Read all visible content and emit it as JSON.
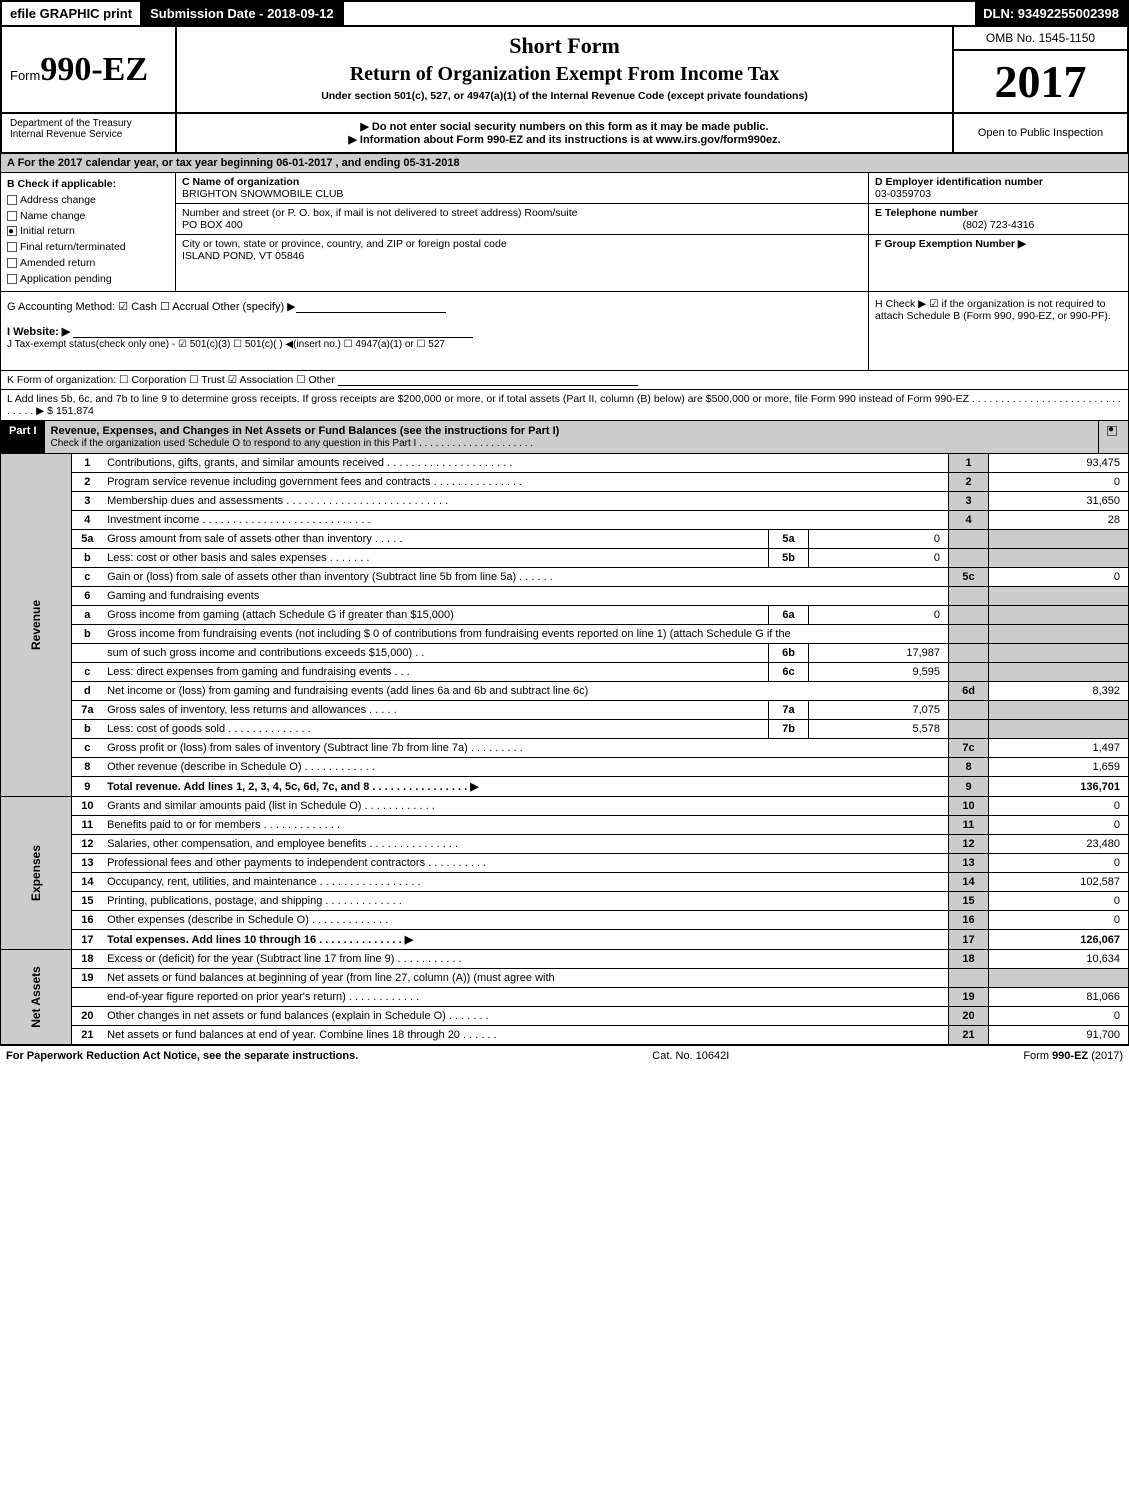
{
  "topbar": {
    "efile": "efile GRAPHIC print",
    "subdate": "Submission Date - 2018-09-12",
    "dln": "DLN: 93492255002398"
  },
  "header": {
    "form_prefix": "Form",
    "form_number": "990-EZ",
    "short_form": "Short Form",
    "title": "Return of Organization Exempt From Income Tax",
    "subtitle": "Under section 501(c), 527, or 4947(a)(1) of the Internal Revenue Code (except private foundations)",
    "omb": "OMB No. 1545-1150",
    "year": "2017",
    "dept": "Department of the Treasury\nInternal Revenue Service",
    "arrow1": "▶ Do not enter social security numbers on this form as it may be made public.",
    "arrow2": "▶ Information about Form 990-EZ and its instructions is at ",
    "irs_link": "www.irs.gov/form990ez",
    "open": "Open to Public Inspection"
  },
  "rowA": "A  For the 2017 calendar year, or tax year beginning 06-01-2017           , and ending 05-31-2018",
  "B": {
    "label": "B  Check if applicable:",
    "items": [
      "Address change",
      "Name change",
      "Initial return",
      "Final return/terminated",
      "Amended return",
      "Application pending"
    ],
    "checked_idx": 2
  },
  "C": {
    "name_label": "C Name of organization",
    "name": "BRIGHTON SNOWMOBILE CLUB",
    "addr_label": "Number and street (or P. O. box, if mail is not delivered to street address)   Room/suite",
    "addr": "PO BOX 400",
    "city_label": "City or town, state or province, country, and ZIP or foreign postal code",
    "city": "ISLAND POND, VT  05846"
  },
  "D": {
    "label": "D Employer identification number",
    "value": "03-0359703"
  },
  "E": {
    "label": "E Telephone number",
    "value": "(802) 723-4316"
  },
  "F": {
    "label": "F Group Exemption Number  ▶",
    "value": ""
  },
  "G": {
    "text": "G Accounting Method:   ☑ Cash   ☐ Accrual   Other (specify) ▶"
  },
  "H": {
    "text": "H   Check ▶  ☑  if the organization is not required to attach Schedule B (Form 990, 990-EZ, or 990-PF)."
  },
  "I": {
    "text": "I Website: ▶"
  },
  "J": {
    "text": "J Tax-exempt status(check only one) - ☑ 501(c)(3) ☐ 501(c)(  ) ◀(insert no.) ☐ 4947(a)(1) or ☐ 527"
  },
  "K": {
    "text": "K Form of organization:   ☐ Corporation   ☐ Trust   ☑ Association   ☐ Other"
  },
  "L": {
    "text": "L Add lines 5b, 6c, and 7b to line 9 to determine gross receipts. If gross receipts are $200,000 or more, or if total assets (Part II, column (B) below) are $500,000 or more, file Form 990 instead of Form 990-EZ  .  .  .  .  .  .  .  .  .  .  .  .  .  .  .  .  .  .  .  .  .  .  .  .  .  .  .  .  .  .  . ▶ $",
    "value": "151,874"
  },
  "part1": {
    "label": "Part I",
    "title": "Revenue, Expenses, and Changes in Net Assets or Fund Balances (see the instructions for Part I)",
    "sub": "Check if the organization used Schedule O to respond to any question in this Part I .  .  .  .  .  .  .  .  .  .  .  .  .  .  .  .  .  .  .  .  ."
  },
  "sections": {
    "revenue": "Revenue",
    "expenses": "Expenses",
    "netassets": "Net Assets"
  },
  "lines": [
    {
      "n": "1",
      "d": "Contributions, gifts, grants, and similar amounts received  .  .  .  .  .  .  .  .  .  .  .  .  .  .  .  .  .  .  .  .  .",
      "out": "1",
      "v": "93,475"
    },
    {
      "n": "2",
      "d": "Program service revenue including government fees and contracts  .  .  .  .  .  .  .  .  .  .  .  .  .  .  .",
      "out": "2",
      "v": "0"
    },
    {
      "n": "3",
      "d": "Membership dues and assessments  .  .  .  .  .  .  .  .  .  .  .  .  .  .  .  .  .  .  .  .  .  .  .  .  .  .  .",
      "out": "3",
      "v": "31,650"
    },
    {
      "n": "4",
      "d": "Investment income  .  .  .  .  .  .  .  .  .  .  .  .  .  .  .  .  .  .  .  .  .  .  .  .  .  .  .  .",
      "out": "4",
      "v": "28"
    },
    {
      "n": "5a",
      "d": "Gross amount from sale of assets other than inventory  .  .  .  .  .",
      "mid": "5a",
      "mv": "0"
    },
    {
      "n": "b",
      "d": "Less: cost or other basis and sales expenses  .  .  .  .  .  .  .",
      "mid": "5b",
      "mv": "0"
    },
    {
      "n": "c",
      "d": "Gain or (loss) from sale of assets other than inventory (Subtract line 5b from line 5a) .  .  .  .  .  .",
      "out": "5c",
      "v": "0"
    },
    {
      "n": "6",
      "d": "Gaming and fundraising events",
      "noval": true
    },
    {
      "n": "a",
      "d": "Gross income from gaming (attach Schedule G if greater than $15,000)",
      "mid": "6a",
      "mv": "0"
    },
    {
      "n": "b",
      "d": "Gross income from fundraising events (not including $ 0                of contributions from fundraising events reported on line 1) (attach Schedule G if the",
      "noval": true
    },
    {
      "n": "",
      "d": "sum of such gross income and contributions exceeds $15,000)   .  .",
      "mid": "6b",
      "mv": "17,987"
    },
    {
      "n": "c",
      "d": "Less: direct expenses from gaming and fundraising events   .  .  .",
      "mid": "6c",
      "mv": "9,595"
    },
    {
      "n": "d",
      "d": "Net income or (loss) from gaming and fundraising events (add lines 6a and 6b and subtract line 6c)",
      "out": "6d",
      "v": "8,392"
    },
    {
      "n": "7a",
      "d": "Gross sales of inventory, less returns and allowances  .  .  .  .  .",
      "mid": "7a",
      "mv": "7,075"
    },
    {
      "n": "b",
      "d": "Less: cost of goods sold   .  .  .  .  .  .  .  .  .  .  .  .  .  .",
      "mid": "7b",
      "mv": "5,578"
    },
    {
      "n": "c",
      "d": "Gross profit or (loss) from sales of inventory (Subtract line 7b from line 7a) .  .  .  .  .  .  .  .  .",
      "out": "7c",
      "v": "1,497"
    },
    {
      "n": "8",
      "d": "Other revenue (describe in Schedule O)   .  .  .  .  .  .  .  .  .  .  .  .",
      "out": "8",
      "v": "1,659"
    },
    {
      "n": "9",
      "d": "Total revenue. Add lines 1, 2, 3, 4, 5c, 6d, 7c, and 8  .  .  .  .  .  .  .  .  .  .  .  .  .  .  .  .  ▶",
      "out": "9",
      "v": "136,701",
      "bold": true
    }
  ],
  "exp_lines": [
    {
      "n": "10",
      "d": "Grants and similar amounts paid (list in Schedule O)   .  .  .  .  .  .  .  .  .  .  .  .",
      "out": "10",
      "v": "0"
    },
    {
      "n": "11",
      "d": "Benefits paid to or for members   .  .  .  .  .  .  .  .  .  .  .  .  .",
      "out": "11",
      "v": "0"
    },
    {
      "n": "12",
      "d": "Salaries, other compensation, and employee benefits .  .  .  .  .  .  .  .  .  .  .  .  .  .  .",
      "out": "12",
      "v": "23,480"
    },
    {
      "n": "13",
      "d": "Professional fees and other payments to independent contractors  .  .  .  .  .  .  .  .  .  .",
      "out": "13",
      "v": "0"
    },
    {
      "n": "14",
      "d": "Occupancy, rent, utilities, and maintenance .  .  .  .  .  .  .  .  .  .  .  .  .  .  .  .  .",
      "out": "14",
      "v": "102,587"
    },
    {
      "n": "15",
      "d": "Printing, publications, postage, and shipping   .  .  .  .  .  .  .  .  .  .  .  .  .",
      "out": "15",
      "v": "0"
    },
    {
      "n": "16",
      "d": "Other expenses (describe in Schedule O)   .  .  .  .  .  .  .  .  .  .  .  .  .",
      "out": "16",
      "v": "0"
    },
    {
      "n": "17",
      "d": "Total expenses. Add lines 10 through 16   .  .  .  .  .  .  .  .  .  .  .  .  .  .  ▶",
      "out": "17",
      "v": "126,067",
      "bold": true
    }
  ],
  "na_lines": [
    {
      "n": "18",
      "d": "Excess or (deficit) for the year (Subtract line 17 from line 9)   .  .  .  .  .  .  .  .  .  .  .",
      "out": "18",
      "v": "10,634"
    },
    {
      "n": "19",
      "d": "Net assets or fund balances at beginning of year (from line 27, column (A)) (must agree with",
      "noval": true
    },
    {
      "n": "",
      "d": "end-of-year figure reported on prior year's return)   .  .  .  .  .  .  .  .  .  .  .  .",
      "out": "19",
      "v": "81,066"
    },
    {
      "n": "20",
      "d": "Other changes in net assets or fund balances (explain in Schedule O)   .  .  .  .  .  .  .",
      "out": "20",
      "v": "0"
    },
    {
      "n": "21",
      "d": "Net assets or fund balances at end of year. Combine lines 18 through 20   .  .  .  .  .  .",
      "out": "21",
      "v": "91,700"
    }
  ],
  "footer": {
    "left": "For Paperwork Reduction Act Notice, see the separate instructions.",
    "mid": "Cat. No. 10642I",
    "right": "Form 990-EZ (2017)"
  },
  "colors": {
    "shaded": "#cccccc",
    "black": "#000000",
    "white": "#ffffff"
  }
}
